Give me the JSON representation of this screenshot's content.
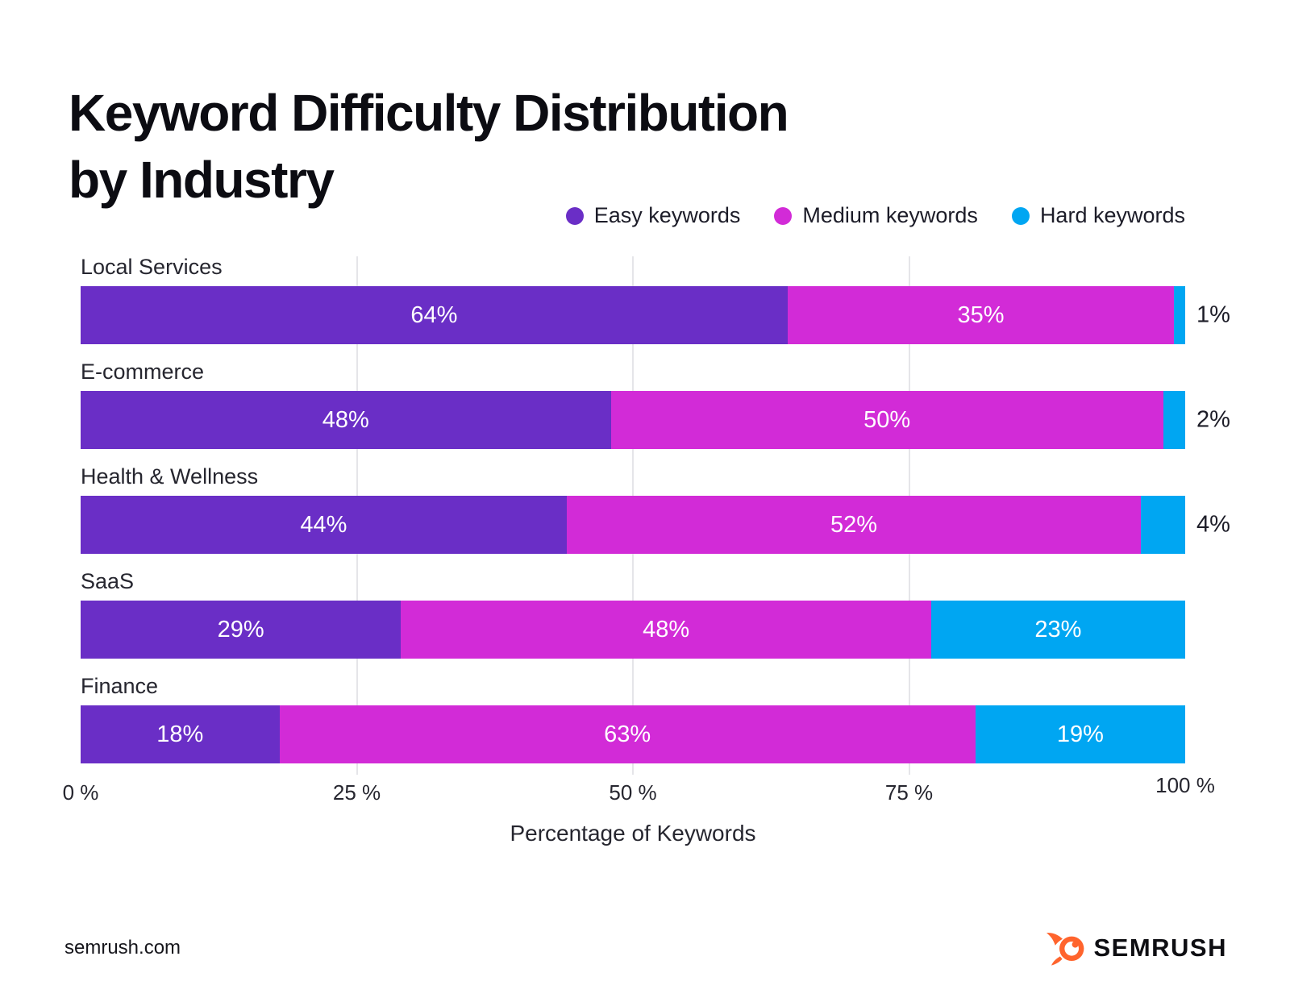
{
  "title": {
    "line1": "Keyword Difficulty Distribution",
    "line2": "by Industry"
  },
  "legend": {
    "items": [
      {
        "label": "Easy keywords",
        "color": "#6A2EC6"
      },
      {
        "label": "Medium keywords",
        "color": "#D22BD7"
      },
      {
        "label": "Hard keywords",
        "color": "#00A6F2"
      }
    ]
  },
  "chart_data": {
    "type": "bar",
    "orientation": "horizontal",
    "stacked": true,
    "title": "Keyword Difficulty Distribution by Industry",
    "categories": [
      "Local Services",
      "E-commerce",
      "Health & Wellness",
      "SaaS",
      "Finance"
    ],
    "series": [
      {
        "name": "Easy keywords",
        "color": "#6A2EC6",
        "values": [
          64,
          48,
          44,
          29,
          18
        ]
      },
      {
        "name": "Medium keywords",
        "color": "#D22BD7",
        "values": [
          35,
          50,
          52,
          48,
          63
        ]
      },
      {
        "name": "Hard keywords",
        "color": "#00A6F2",
        "values": [
          1,
          2,
          4,
          23,
          19
        ]
      }
    ],
    "value_label_format": "{v}%",
    "outside_label_threshold": 5,
    "x_ticks": [
      "0 %",
      "25 %",
      "50 %",
      "75 %",
      "100 %"
    ],
    "x_tick_values": [
      0,
      25,
      50,
      75,
      100
    ],
    "gridlines_at": [
      25,
      50,
      75
    ],
    "xlim": [
      0,
      100
    ],
    "xlabel": "Percentage of Keywords",
    "legend_position": "top-right",
    "grid": true
  },
  "footer": {
    "site": "semrush.com",
    "brand": "SEMRUSH",
    "logo_color": "#FF642D"
  }
}
